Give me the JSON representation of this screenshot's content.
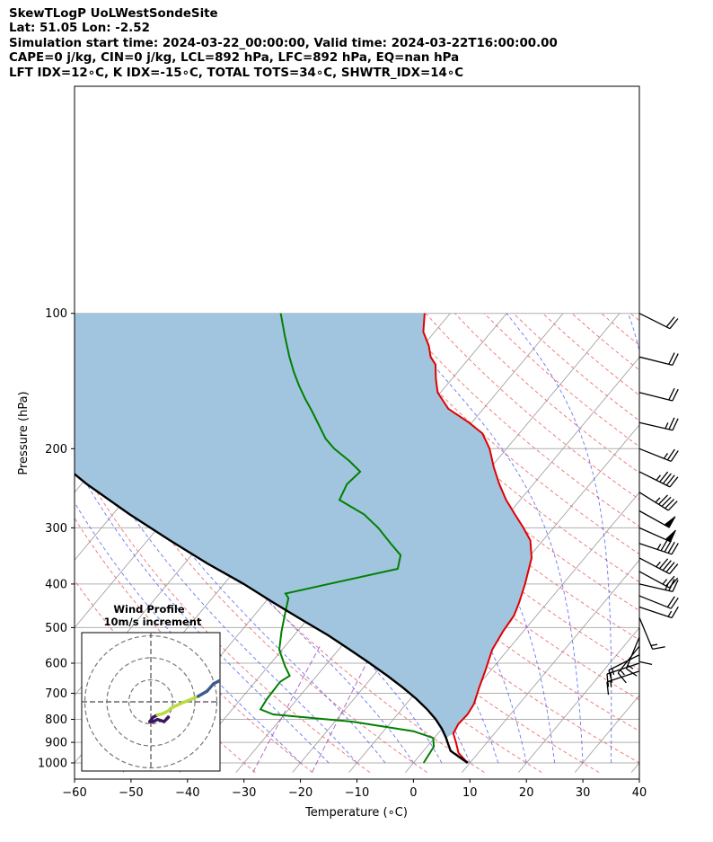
{
  "title_lines": [
    "SkewTLogP UoLWestSondeSite",
    "Lat: 51.05   Lon: -2.52",
    "Simulation start time: 2024-03-22_00:00:00, Valid time: 2024-03-22T16:00:00.00",
    "CAPE=0 j/kg, CIN=0 j/kg, LCL=892 hPa, LFC=892 hPa, EQ=nan hPa",
    "LFT IDX=12∘C, K IDX=-15∘C, TOTAL TOTS=34∘C, SHWTR_IDX=14∘C"
  ],
  "chart_data": {
    "type": "line",
    "title": "SkewTLogP UoLWestSondeSite",
    "xlabel": "Temperature (∘C)",
    "ylabel": "Pressure (hPa)",
    "xlim": [
      -60,
      40
    ],
    "ylim": [
      1050,
      100
    ],
    "yscale": "log",
    "grid": true,
    "x_ticks": [
      -60,
      -50,
      -40,
      -30,
      -20,
      -10,
      0,
      10,
      20,
      30,
      40
    ],
    "y_ticks": [
      1000,
      900,
      800,
      700,
      600,
      500,
      400,
      300,
      200,
      100
    ],
    "colors": {
      "temperature": "#e00000",
      "dewpoint": "#008000",
      "parcel": "#000000",
      "shade": "#a2c5df",
      "dry_adiabats": "#f06060",
      "moist_adiabats": "#4f5ff0",
      "mixing_ratio": "#a050c0",
      "isotherms": "#999999"
    },
    "series": [
      {
        "key": "temperature",
        "points": [
          [
            9.6,
            1000
          ],
          [
            6.5,
            950
          ],
          [
            4.5,
            900
          ],
          [
            2.7,
            860
          ],
          [
            2.2,
            820
          ],
          [
            2.4,
            780
          ],
          [
            2.0,
            740
          ],
          [
            0.5,
            680
          ],
          [
            -1.0,
            620
          ],
          [
            -2.8,
            560
          ],
          [
            -3.6,
            510
          ],
          [
            -4.0,
            470
          ],
          [
            -5.0,
            440
          ],
          [
            -6.7,
            400
          ],
          [
            -9.4,
            350
          ],
          [
            -12.2,
            320
          ],
          [
            -15.3,
            300
          ],
          [
            -18.8,
            280
          ],
          [
            -22.5,
            260
          ],
          [
            -26.0,
            240
          ],
          [
            -29.5,
            220
          ],
          [
            -33.0,
            200
          ],
          [
            -36.5,
            185
          ],
          [
            -40.5,
            175
          ],
          [
            -46.2,
            163
          ],
          [
            -50.5,
            150
          ],
          [
            -52.8,
            140
          ],
          [
            -55.0,
            130
          ],
          [
            -57.0,
            125
          ],
          [
            -59.0,
            118
          ],
          [
            -62.0,
            110
          ],
          [
            -64.5,
            100
          ]
        ]
      },
      {
        "key": "dewpoint",
        "points": [
          [
            1.8,
            1000
          ],
          [
            1.5,
            960
          ],
          [
            1.2,
            920
          ],
          [
            -0.2,
            880
          ],
          [
            -4.7,
            850
          ],
          [
            -16.7,
            810
          ],
          [
            -32.0,
            780
          ],
          [
            -35.0,
            760
          ],
          [
            -35.4,
            720
          ],
          [
            -35.6,
            660
          ],
          [
            -34.8,
            640
          ],
          [
            -37.0,
            610
          ],
          [
            -40.5,
            560
          ],
          [
            -42.8,
            510
          ],
          [
            -44.6,
            470
          ],
          [
            -46.5,
            430
          ],
          [
            -47.7,
            420
          ],
          [
            -31.5,
            370
          ],
          [
            -33.0,
            345
          ],
          [
            -36.5,
            325
          ],
          [
            -41.0,
            300
          ],
          [
            -45.5,
            280
          ],
          [
            -52.0,
            260
          ],
          [
            -53.0,
            240
          ],
          [
            -52.5,
            225
          ],
          [
            -56.0,
            213
          ],
          [
            -60.5,
            200
          ],
          [
            -63.5,
            190
          ],
          [
            -66.5,
            178
          ],
          [
            -70.0,
            165
          ],
          [
            -73.0,
            155
          ],
          [
            -76.0,
            145
          ],
          [
            -79.0,
            135
          ],
          [
            -82.0,
            125
          ],
          [
            -86.0,
            112
          ],
          [
            -90.0,
            100
          ]
        ]
      },
      {
        "key": "parcel",
        "points": [
          [
            9.6,
            1000
          ],
          [
            4.8,
            940
          ],
          [
            3.0,
            900
          ],
          [
            2.1,
            880
          ],
          [
            0.0,
            840
          ],
          [
            -2.5,
            800
          ],
          [
            -5.5,
            760
          ],
          [
            -9.0,
            720
          ],
          [
            -13.0,
            680
          ],
          [
            -17.5,
            640
          ],
          [
            -22.5,
            600
          ],
          [
            -28.0,
            560
          ],
          [
            -34.0,
            520
          ],
          [
            -41.0,
            480
          ],
          [
            -48.5,
            440
          ],
          [
            -56.5,
            400
          ],
          [
            -66.0,
            360
          ],
          [
            -76.0,
            320
          ],
          [
            -87.0,
            280
          ],
          [
            -99.0,
            240
          ],
          [
            -112.0,
            200
          ],
          [
            -125.0,
            165
          ],
          [
            -137.0,
            135
          ],
          [
            -147.0,
            115
          ],
          [
            -154.0,
            100
          ]
        ]
      }
    ],
    "wind_barbs": [
      {
        "p": 100,
        "u": -20,
        "v": 10
      },
      {
        "p": 125,
        "u": -20,
        "v": 5
      },
      {
        "p": 150,
        "u": -20,
        "v": 5
      },
      {
        "p": 175,
        "u": -22,
        "v": 5
      },
      {
        "p": 200,
        "u": -25,
        "v": 10
      },
      {
        "p": 225,
        "u": -40,
        "v": 20
      },
      {
        "p": 250,
        "u": -40,
        "v": 25
      },
      {
        "p": 275,
        "u": -45,
        "v": 25
      },
      {
        "p": 300,
        "u": -45,
        "v": 20
      },
      {
        "p": 325,
        "u": -45,
        "v": 15
      },
      {
        "p": 350,
        "u": -38,
        "v": 20
      },
      {
        "p": 375,
        "u": -22,
        "v": 12
      },
      {
        "p": 400,
        "u": -22,
        "v": 5
      },
      {
        "p": 425,
        "u": -20,
        "v": 8
      },
      {
        "p": 450,
        "u": -15,
        "v": 5
      },
      {
        "p": 475,
        "u": -5,
        "v": 12
      },
      {
        "p": 500,
        "u": 0,
        "v": 12
      },
      {
        "p": 525,
        "u": 5,
        "v": 12
      },
      {
        "p": 550,
        "u": 8,
        "v": 10
      },
      {
        "p": 575,
        "u": 12,
        "v": 6
      },
      {
        "p": 600,
        "u": 12,
        "v": 4
      },
      {
        "p": 625,
        "u": 12,
        "v": 4
      }
    ],
    "hodograph": {
      "title_line1": "Wind Profile",
      "title_line2": "10m/s increment",
      "ring_increment_ms": 10,
      "points": [
        [
          8,
          -7
        ],
        [
          6,
          -9
        ],
        [
          3,
          -8
        ],
        [
          1,
          -9
        ],
        [
          -0.5,
          -9
        ],
        [
          1,
          -7
        ],
        [
          3,
          -6
        ],
        [
          5,
          -5.5
        ],
        [
          6.2,
          -5
        ],
        [
          8,
          -4
        ],
        [
          9,
          -3
        ],
        [
          12,
          -1.5
        ],
        [
          15,
          -0.2
        ],
        [
          18,
          1
        ],
        [
          21.5,
          2.5
        ],
        [
          25.5,
          4.8
        ],
        [
          28.5,
          8.2
        ],
        [
          32,
          10
        ],
        [
          35,
          11
        ],
        [
          39,
          12.5
        ],
        [
          43,
          14
        ]
      ]
    }
  }
}
